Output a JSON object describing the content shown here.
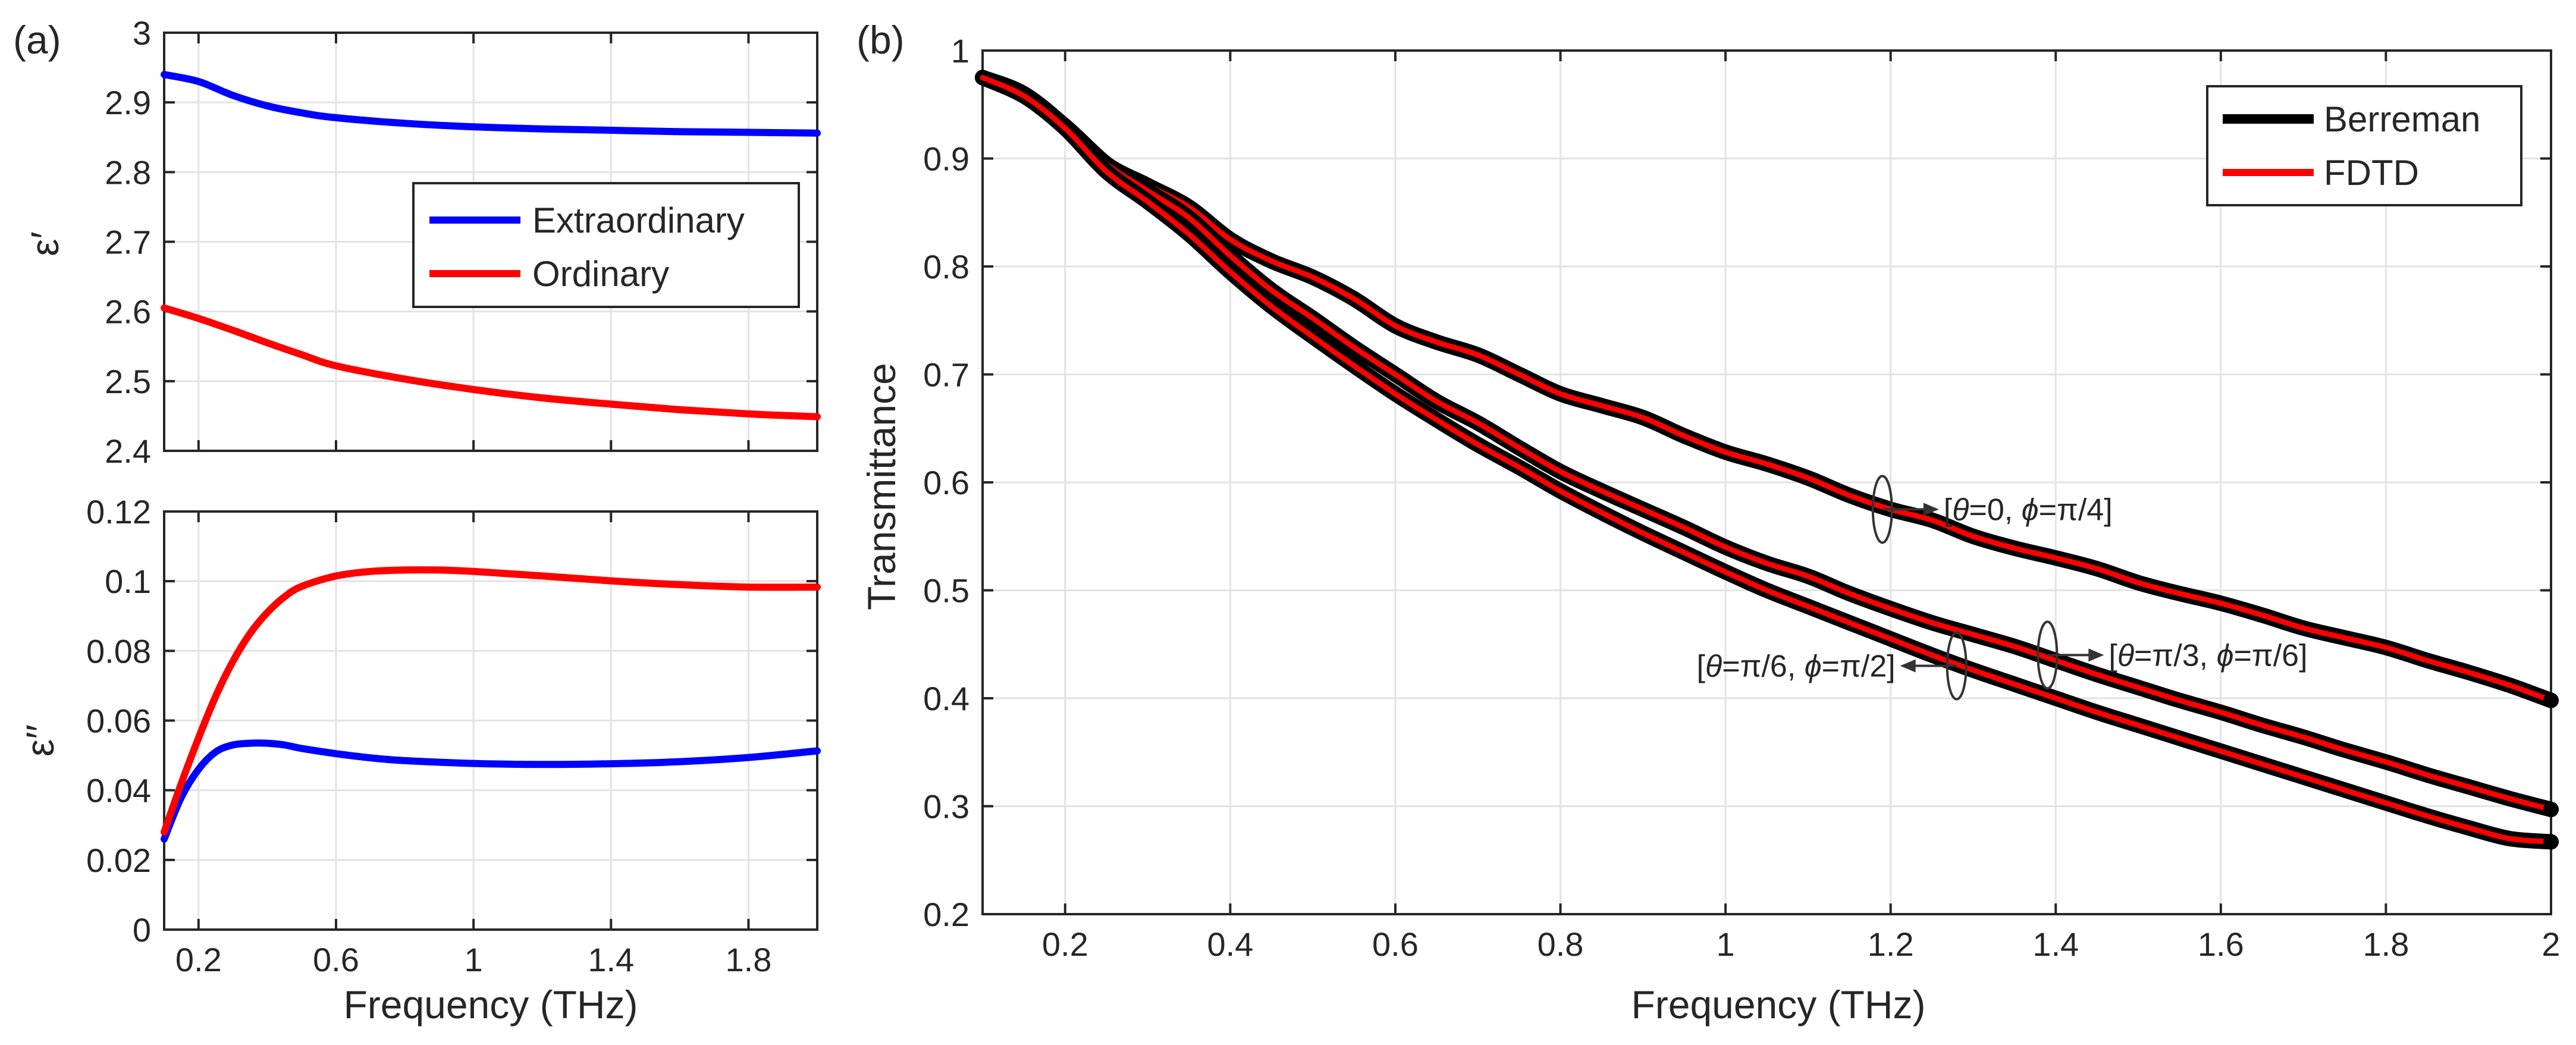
{
  "chart_data": [
    {
      "id": "a-top",
      "panel_label": "(a)",
      "type": "line",
      "title": "",
      "xlabel": "",
      "ylabel": "ε′",
      "xlim": [
        0.1,
        2
      ],
      "ylim": [
        2.4,
        3
      ],
      "xticks": [
        0.2,
        0.6,
        1,
        1.4,
        1.8
      ],
      "xtick_labels": [
        "",
        "",
        "",
        "",
        ""
      ],
      "yticks": [
        2.4,
        2.5,
        2.6,
        2.7,
        2.8,
        2.9,
        3
      ],
      "ytick_labels": [
        "2.4",
        "2.5",
        "2.6",
        "2.7",
        "2.8",
        "2.9",
        "3"
      ],
      "grid": true,
      "legend_position": "center-right",
      "series": [
        {
          "name": "Extraordinary",
          "color": "#0000ff",
          "x": [
            0.1,
            0.2,
            0.3,
            0.4,
            0.5,
            0.6,
            0.8,
            1.0,
            1.2,
            1.4,
            1.6,
            1.8,
            2.0
          ],
          "y": [
            2.94,
            2.93,
            2.91,
            2.895,
            2.885,
            2.878,
            2.87,
            2.865,
            2.862,
            2.86,
            2.858,
            2.857,
            2.856
          ]
        },
        {
          "name": "Ordinary",
          "color": "#ff0000",
          "x": [
            0.1,
            0.2,
            0.3,
            0.4,
            0.5,
            0.6,
            0.8,
            1.0,
            1.2,
            1.4,
            1.6,
            1.8,
            2.0
          ],
          "y": [
            2.605,
            2.59,
            2.573,
            2.555,
            2.538,
            2.522,
            2.503,
            2.488,
            2.476,
            2.467,
            2.459,
            2.453,
            2.449
          ]
        }
      ]
    },
    {
      "id": "a-bottom",
      "panel_label": "",
      "type": "line",
      "title": "",
      "xlabel": "Frequency (THz)",
      "ylabel": "ε′′",
      "xlim": [
        0.1,
        2
      ],
      "ylim": [
        0,
        0.12
      ],
      "xticks": [
        0.2,
        0.6,
        1,
        1.4,
        1.8
      ],
      "xtick_labels": [
        "0.2",
        "0.6",
        "1",
        "1.4",
        "1.8"
      ],
      "yticks": [
        0,
        0.02,
        0.04,
        0.06,
        0.08,
        0.1,
        0.12
      ],
      "ytick_labels": [
        "0",
        "0.02",
        "0.04",
        "0.06",
        "0.08",
        "0.1",
        "0.12"
      ],
      "grid": true,
      "series": [
        {
          "name": "Extraordinary",
          "color": "#0000ff",
          "x": [
            0.1,
            0.15,
            0.2,
            0.25,
            0.3,
            0.35,
            0.4,
            0.45,
            0.5,
            0.6,
            0.7,
            0.8,
            1.0,
            1.2,
            1.4,
            1.6,
            1.8,
            2.0
          ],
          "y": [
            0.026,
            0.038,
            0.046,
            0.051,
            0.053,
            0.0535,
            0.0535,
            0.053,
            0.052,
            0.0505,
            0.0493,
            0.0485,
            0.0477,
            0.0474,
            0.0476,
            0.0482,
            0.0494,
            0.0513
          ]
        },
        {
          "name": "Ordinary",
          "color": "#ff0000",
          "x": [
            0.1,
            0.15,
            0.2,
            0.25,
            0.3,
            0.35,
            0.4,
            0.45,
            0.5,
            0.6,
            0.7,
            0.8,
            0.9,
            1.0,
            1.2,
            1.4,
            1.6,
            1.8,
            2.0
          ],
          "y": [
            0.028,
            0.042,
            0.055,
            0.067,
            0.077,
            0.085,
            0.091,
            0.0955,
            0.0985,
            0.1015,
            0.1028,
            0.1032,
            0.1032,
            0.1028,
            0.1015,
            0.1001,
            0.099,
            0.0983,
            0.0983
          ]
        }
      ]
    },
    {
      "id": "b",
      "panel_label": "(b)",
      "type": "line",
      "title": "",
      "xlabel": "Frequency (THz)",
      "ylabel": "Transmittance",
      "xlim": [
        0.1,
        2
      ],
      "ylim": [
        0.2,
        1
      ],
      "xticks": [
        0.2,
        0.4,
        0.6,
        0.8,
        1,
        1.2,
        1.4,
        1.6,
        1.8,
        2
      ],
      "xtick_labels": [
        "0.2",
        "0.4",
        "0.6",
        "0.8",
        "1",
        "1.2",
        "1.4",
        "1.6",
        "1.8",
        "2"
      ],
      "yticks": [
        0.2,
        0.3,
        0.4,
        0.5,
        0.6,
        0.7,
        0.8,
        0.9,
        1
      ],
      "ytick_labels": [
        "0.2",
        "0.3",
        "0.4",
        "0.5",
        "0.6",
        "0.7",
        "0.8",
        "0.9",
        "1"
      ],
      "grid": true,
      "legend_position": "top-right",
      "legend": [
        {
          "name": "Berreman",
          "color": "#000000"
        },
        {
          "name": "FDTD",
          "color": "#ff0000"
        }
      ],
      "series": [
        {
          "name": "[θ=0, ϕ=π/4]",
          "x": [
            0.1,
            0.15,
            0.2,
            0.25,
            0.3,
            0.35,
            0.4,
            0.45,
            0.5,
            0.55,
            0.6,
            0.65,
            0.7,
            0.75,
            0.8,
            0.85,
            0.9,
            0.95,
            1.0,
            1.05,
            1.1,
            1.15,
            1.2,
            1.25,
            1.3,
            1.35,
            1.4,
            1.45,
            1.5,
            1.55,
            1.6,
            1.65,
            1.7,
            1.75,
            1.8,
            1.85,
            1.9,
            1.95,
            2.0
          ],
          "y": [
            0.975,
            0.96,
            0.93,
            0.895,
            0.875,
            0.855,
            0.825,
            0.805,
            0.79,
            0.77,
            0.745,
            0.73,
            0.718,
            0.7,
            0.682,
            0.671,
            0.66,
            0.643,
            0.628,
            0.617,
            0.604,
            0.588,
            0.575,
            0.565,
            0.55,
            0.539,
            0.53,
            0.52,
            0.507,
            0.497,
            0.488,
            0.477,
            0.465,
            0.456,
            0.447,
            0.435,
            0.424,
            0.412,
            0.398
          ]
        },
        {
          "name": "[θ=π/3, ϕ=π/6]",
          "x": [
            0.1,
            0.15,
            0.2,
            0.25,
            0.3,
            0.35,
            0.4,
            0.45,
            0.5,
            0.55,
            0.6,
            0.65,
            0.7,
            0.75,
            0.8,
            0.85,
            0.9,
            0.95,
            1.0,
            1.05,
            1.1,
            1.15,
            1.2,
            1.25,
            1.3,
            1.35,
            1.4,
            1.45,
            1.5,
            1.55,
            1.6,
            1.65,
            1.7,
            1.75,
            1.8,
            1.85,
            1.9,
            1.95,
            2.0
          ],
          "y": [
            0.975,
            0.958,
            0.93,
            0.895,
            0.87,
            0.845,
            0.81,
            0.778,
            0.752,
            0.725,
            0.7,
            0.675,
            0.655,
            0.632,
            0.61,
            0.592,
            0.575,
            0.558,
            0.54,
            0.525,
            0.513,
            0.497,
            0.483,
            0.47,
            0.459,
            0.448,
            0.435,
            0.422,
            0.41,
            0.398,
            0.387,
            0.375,
            0.364,
            0.352,
            0.341,
            0.329,
            0.318,
            0.307,
            0.297
          ]
        },
        {
          "name": "[θ=π/6, ϕ=π/2]",
          "x": [
            0.1,
            0.15,
            0.2,
            0.25,
            0.3,
            0.35,
            0.4,
            0.45,
            0.5,
            0.55,
            0.6,
            0.65,
            0.7,
            0.75,
            0.8,
            0.85,
            0.9,
            0.95,
            1.0,
            1.05,
            1.1,
            1.15,
            1.2,
            1.25,
            1.3,
            1.35,
            1.4,
            1.45,
            1.5,
            1.55,
            1.6,
            1.65,
            1.7,
            1.75,
            1.8,
            1.85,
            1.9,
            1.95,
            2.0
          ],
          "y": [
            0.975,
            0.958,
            0.928,
            0.888,
            0.86,
            0.83,
            0.795,
            0.763,
            0.735,
            0.708,
            0.682,
            0.658,
            0.635,
            0.614,
            0.592,
            0.572,
            0.553,
            0.535,
            0.517,
            0.5,
            0.485,
            0.47,
            0.455,
            0.44,
            0.426,
            0.413,
            0.4,
            0.387,
            0.375,
            0.363,
            0.351,
            0.339,
            0.327,
            0.315,
            0.303,
            0.291,
            0.28,
            0.27,
            0.267
          ]
        }
      ],
      "annotations": [
        {
          "label_parts": [
            "[",
            "θ",
            "=0, ",
            "ϕ",
            "=π/4]"
          ],
          "anchor_x": 1.19,
          "anchor_y": 0.575,
          "side": "right"
        },
        {
          "label_parts": [
            "[",
            "θ",
            "=π/3, ",
            "ϕ",
            "=π/6]"
          ],
          "anchor_x": 1.39,
          "anchor_y": 0.44,
          "side": "right"
        },
        {
          "label_parts": [
            "[",
            "θ",
            "=π/6, ",
            "ϕ",
            "=π/2]"
          ],
          "anchor_x": 1.28,
          "anchor_y": 0.43,
          "side": "left"
        }
      ]
    }
  ]
}
